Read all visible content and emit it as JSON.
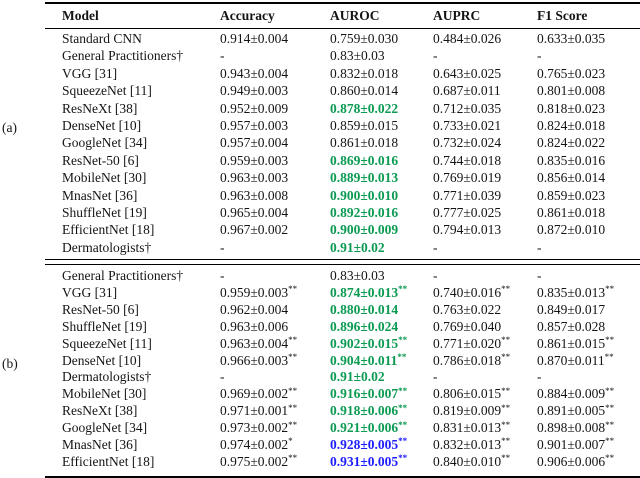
{
  "panel_labels": {
    "a": "(a)",
    "b": "(b)"
  },
  "table": {
    "columns": [
      {
        "key": "model",
        "label": "Model"
      },
      {
        "key": "accuracy",
        "label": "Accuracy"
      },
      {
        "key": "auroc",
        "label": "AUROC"
      },
      {
        "key": "auprc",
        "label": "AUPRC"
      },
      {
        "key": "f1",
        "label": "F1 Score"
      }
    ],
    "colors": {
      "green": "#0a9a52",
      "blue": "#1c1cff",
      "text": "#141414"
    },
    "sections": [
      {
        "id": "a",
        "rows": [
          {
            "model": "Standard CNN",
            "cells": [
              {
                "t": "0.914±0.004"
              },
              {
                "t": "0.759±0.030"
              },
              {
                "t": "0.484±0.026"
              },
              {
                "t": "0.633±0.035"
              }
            ]
          },
          {
            "model": "General Practitioners†",
            "cells": [
              {
                "t": "-"
              },
              {
                "t": "0.83±0.03"
              },
              {
                "t": "-"
              },
              {
                "t": "-"
              }
            ]
          },
          {
            "model": "VGG [31]",
            "cells": [
              {
                "t": "0.943±0.004"
              },
              {
                "t": "0.832±0.018"
              },
              {
                "t": "0.643±0.025"
              },
              {
                "t": "0.765±0.023"
              }
            ]
          },
          {
            "model": "SqueezeNet [11]",
            "cells": [
              {
                "t": "0.949±0.003"
              },
              {
                "t": "0.860±0.014"
              },
              {
                "t": "0.687±0.011"
              },
              {
                "t": "0.801±0.008"
              }
            ]
          },
          {
            "model": "ResNeXt [38]",
            "cells": [
              {
                "t": "0.952±0.009"
              },
              {
                "t": "0.878±0.022",
                "hl": "green"
              },
              {
                "t": "0.712±0.035"
              },
              {
                "t": "0.818±0.023"
              }
            ]
          },
          {
            "model": "DenseNet [10]",
            "cells": [
              {
                "t": "0.957±0.003"
              },
              {
                "t": "0.859±0.015"
              },
              {
                "t": "0.733±0.021"
              },
              {
                "t": "0.824±0.018"
              }
            ]
          },
          {
            "model": "GoogleNet [34]",
            "cells": [
              {
                "t": "0.957±0.004"
              },
              {
                "t": "0.861±0.018"
              },
              {
                "t": "0.732±0.024"
              },
              {
                "t": "0.824±0.022"
              }
            ]
          },
          {
            "model": "ResNet-50 [6]",
            "cells": [
              {
                "t": "0.959±0.003"
              },
              {
                "t": "0.869±0.016",
                "hl": "green"
              },
              {
                "t": "0.744±0.018"
              },
              {
                "t": "0.835±0.016"
              }
            ]
          },
          {
            "model": "MobileNet [30]",
            "cells": [
              {
                "t": "0.963±0.003"
              },
              {
                "t": "0.889±0.013",
                "hl": "green"
              },
              {
                "t": "0.769±0.019"
              },
              {
                "t": "0.856±0.014"
              }
            ]
          },
          {
            "model": "MnasNet [36]",
            "cells": [
              {
                "t": "0.963±0.008"
              },
              {
                "t": "0.900±0.010",
                "hl": "green"
              },
              {
                "t": "0.771±0.039"
              },
              {
                "t": "0.859±0.023"
              }
            ]
          },
          {
            "model": "ShuffleNet [19]",
            "cells": [
              {
                "t": "0.965±0.004"
              },
              {
                "t": "0.892±0.016",
                "hl": "green"
              },
              {
                "t": "0.777±0.025"
              },
              {
                "t": "0.861±0.018"
              }
            ]
          },
          {
            "model": "EfficientNet [18]",
            "cells": [
              {
                "t": "0.967±0.002"
              },
              {
                "t": "0.900±0.009",
                "hl": "green"
              },
              {
                "t": "0.794±0.013"
              },
              {
                "t": "0.872±0.010"
              }
            ]
          },
          {
            "model": "Dermatologists†",
            "cells": [
              {
                "t": "-"
              },
              {
                "t": "0.91±0.02",
                "hl": "green"
              },
              {
                "t": "-"
              },
              {
                "t": "-"
              }
            ]
          }
        ]
      },
      {
        "id": "b",
        "rows": [
          {
            "model": "General Practitioners†",
            "cells": [
              {
                "t": "-"
              },
              {
                "t": "0.83±0.03"
              },
              {
                "t": "-"
              },
              {
                "t": "-"
              }
            ]
          },
          {
            "model": "VGG [31]",
            "cells": [
              {
                "t": "0.959±0.003",
                "sup": "**"
              },
              {
                "t": "0.874±0.013",
                "sup": "**",
                "hl": "green"
              },
              {
                "t": "0.740±0.016",
                "sup": "**"
              },
              {
                "t": "0.835±0.013",
                "sup": "**"
              }
            ]
          },
          {
            "model": "ResNet-50 [6]",
            "cells": [
              {
                "t": "0.962±0.004"
              },
              {
                "t": "0.880±0.014",
                "hl": "green"
              },
              {
                "t": "0.763±0.022"
              },
              {
                "t": "0.849±0.017"
              }
            ]
          },
          {
            "model": "ShuffleNet [19]",
            "cells": [
              {
                "t": "0.963±0.006"
              },
              {
                "t": "0.896±0.024",
                "hl": "green"
              },
              {
                "t": "0.769±0.040"
              },
              {
                "t": "0.857±0.028"
              }
            ]
          },
          {
            "model": "SqueezeNet [11]",
            "cells": [
              {
                "t": "0.963±0.004",
                "sup": "**"
              },
              {
                "t": "0.902±0.015",
                "sup": "**",
                "hl": "green"
              },
              {
                "t": "0.771±0.020",
                "sup": "**"
              },
              {
                "t": "0.861±0.015",
                "sup": "**"
              }
            ]
          },
          {
            "model": "DenseNet [10]",
            "cells": [
              {
                "t": "0.966±0.003",
                "sup": "**"
              },
              {
                "t": "0.904±0.011",
                "sup": "**",
                "hl": "green"
              },
              {
                "t": "0.786±0.018",
                "sup": "**"
              },
              {
                "t": "0.870±0.011",
                "sup": "**"
              }
            ]
          },
          {
            "model": "Dermatologists†",
            "cells": [
              {
                "t": "-"
              },
              {
                "t": "0.91±0.02",
                "hl": "green"
              },
              {
                "t": "-"
              },
              {
                "t": "-"
              }
            ]
          },
          {
            "model": "MobileNet [30]",
            "cells": [
              {
                "t": "0.969±0.002",
                "sup": "**"
              },
              {
                "t": "0.916±0.007",
                "sup": "**",
                "hl": "green"
              },
              {
                "t": "0.806±0.015",
                "sup": "**"
              },
              {
                "t": "0.884±0.009",
                "sup": "**"
              }
            ]
          },
          {
            "model": "ResNeXt [38]",
            "cells": [
              {
                "t": "0.971±0.001",
                "sup": "**"
              },
              {
                "t": "0.918±0.006",
                "sup": "**",
                "hl": "green"
              },
              {
                "t": "0.819±0.009",
                "sup": "**"
              },
              {
                "t": "0.891±0.005",
                "sup": "**"
              }
            ]
          },
          {
            "model": "GoogleNet [34]",
            "cells": [
              {
                "t": "0.973±0.002",
                "sup": "**"
              },
              {
                "t": "0.921±0.006",
                "sup": "**",
                "hl": "green"
              },
              {
                "t": "0.831±0.013",
                "sup": "**"
              },
              {
                "t": "0.898±0.008",
                "sup": "**"
              }
            ]
          },
          {
            "model": "MnasNet [36]",
            "cells": [
              {
                "t": "0.974±0.002",
                "sup": "*"
              },
              {
                "t": "0.928±0.005",
                "sup": "**",
                "hl": "blue"
              },
              {
                "t": "0.832±0.013",
                "sup": "**"
              },
              {
                "t": "0.901±0.007",
                "sup": "**"
              }
            ]
          },
          {
            "model": "EfficientNet [18]",
            "cells": [
              {
                "t": "0.975±0.002",
                "sup": "**"
              },
              {
                "t": "0.931±0.005",
                "sup": "**",
                "hl": "blue"
              },
              {
                "t": "0.840±0.010",
                "sup": "**"
              },
              {
                "t": "0.906±0.006",
                "sup": "**"
              }
            ]
          }
        ]
      }
    ]
  }
}
